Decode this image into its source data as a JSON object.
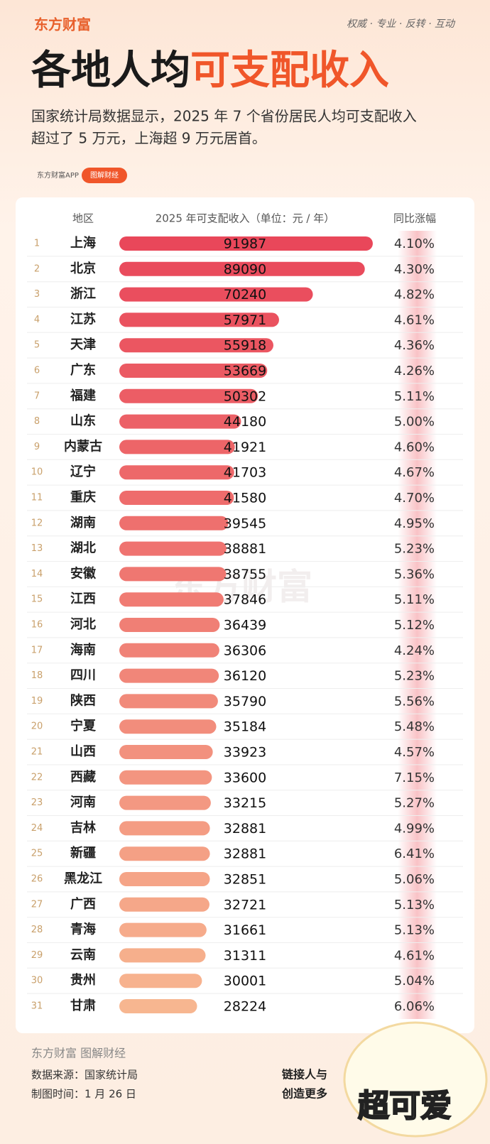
{
  "header": {
    "brand": "东方财富",
    "tagline": "权威 · 专业 · 反转 · 互动",
    "title_part1": "各地人均",
    "title_part2": "可支配收入",
    "subtitle": [
      "国家统计局数据显示，2025 年 7 个省份居民人均可支配收入",
      "超过了 5 万元，上海超 9 万元居首。"
    ],
    "badge_app": "东方财富APP",
    "badge_tag": "图解财经"
  },
  "chart_data": {
    "type": "hbar",
    "columns": [
      "地区",
      "2025 年可支配收入（单位：元 / 年）",
      "同比涨幅"
    ],
    "ranks": [
      1,
      2,
      3,
      4,
      5,
      6,
      7,
      8,
      9,
      10,
      11,
      12,
      13,
      14,
      15,
      16,
      17,
      18,
      19,
      20,
      21,
      22,
      23,
      24,
      25,
      26,
      27,
      28,
      29,
      30,
      31
    ],
    "categories": [
      "上海",
      "北京",
      "浙江",
      "江苏",
      "天津",
      "广东",
      "福建",
      "山东",
      "内蒙古",
      "辽宁",
      "重庆",
      "湖南",
      "湖北",
      "安徽",
      "江西",
      "河北",
      "海南",
      "四川",
      "陕西",
      "宁夏",
      "山西",
      "西藏",
      "河南",
      "吉林",
      "新疆",
      "黑龙江",
      "广西",
      "青海",
      "云南",
      "贵州",
      "甘肃"
    ],
    "values": [
      91987,
      89090,
      70240,
      57971,
      55918,
      53669,
      50302,
      44180,
      41921,
      41703,
      41580,
      39545,
      38881,
      38755,
      37846,
      36439,
      36306,
      36120,
      35790,
      35184,
      33923,
      33600,
      33215,
      32881,
      32881,
      32851,
      32721,
      31661,
      31311,
      30001,
      28224
    ],
    "growth": {
      "values": [
        4.1,
        4.3,
        4.82,
        4.61,
        4.36,
        4.26,
        5.11,
        5.0,
        4.6,
        4.67,
        4.7,
        4.95,
        5.23,
        5.36,
        5.11,
        5.12,
        4.24,
        5.23,
        5.56,
        5.48,
        4.57,
        7.15,
        5.27,
        4.99,
        6.41,
        5.06,
        5.13,
        5.13,
        4.61,
        5.04,
        6.06
      ],
      "value_labels": [
        "4.10%",
        "4.30%",
        "4.82%",
        "4.61%",
        "4.36%",
        "4.26%",
        "5.11%",
        "5.00%",
        "4.60%",
        "4.67%",
        "4.70%",
        "4.95%",
        "5.23%",
        "5.36%",
        "5.11%",
        "5.12%",
        "4.24%",
        "5.23%",
        "5.56%",
        "5.48%",
        "4.57%",
        "7.15%",
        "5.27%",
        "4.99%",
        "6.41%",
        "5.06%",
        "5.13%",
        "5.13%",
        "4.61%",
        "5.04%",
        "6.06%"
      ]
    },
    "xlim": [
      0,
      92000
    ],
    "color_scale": [
      "#e9475a",
      "#f7b690"
    ],
    "watermark": "东方财富"
  },
  "footer": {
    "brand": "东方财富 图解财经",
    "source": "数据来源：国家统计局",
    "date": "制图时间：1 月 26 日",
    "slogan": [
      "链接人与",
      "创造更多"
    ],
    "sticker": "超可爱"
  }
}
